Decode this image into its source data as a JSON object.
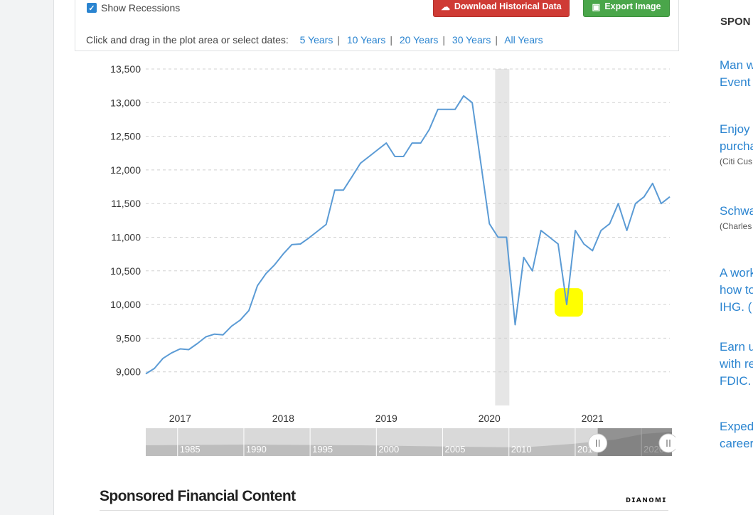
{
  "controls": {
    "show_recessions_label": "Show Recessions",
    "download_label": "Download Historical Data",
    "export_label": "Export Image",
    "hint_text": "Click and drag in the plot area or select dates:",
    "ranges": [
      "5 Years",
      "10 Years",
      "20 Years",
      "30 Years",
      "All Years"
    ]
  },
  "chart_data": {
    "type": "line",
    "x_tick_labels": [
      "2017",
      "2018",
      "2019",
      "2020",
      "2021"
    ],
    "y_tick_labels": [
      "13,500",
      "13,000",
      "12,500",
      "12,000",
      "11,500",
      "11,000",
      "10,500",
      "10,000",
      "9,500",
      "9,000"
    ],
    "ylim": [
      8500,
      13500
    ],
    "grid": "horizontal dashed",
    "series": [
      {
        "color": "#5b9bd5",
        "points": [
          [
            "2016-09",
            8970
          ],
          [
            "2016-10",
            9050
          ],
          [
            "2016-11",
            9200
          ],
          [
            "2016-12",
            9280
          ],
          [
            "2017-01",
            9340
          ],
          [
            "2017-02",
            9330
          ],
          [
            "2017-03",
            9420
          ],
          [
            "2017-04",
            9520
          ],
          [
            "2017-05",
            9560
          ],
          [
            "2017-06",
            9550
          ],
          [
            "2017-07",
            9680
          ],
          [
            "2017-08",
            9770
          ],
          [
            "2017-09",
            9910
          ],
          [
            "2017-10",
            10280
          ],
          [
            "2017-11",
            10460
          ],
          [
            "2017-12",
            10590
          ],
          [
            "2018-01",
            10750
          ],
          [
            "2018-02",
            10890
          ],
          [
            "2018-03",
            10900
          ],
          [
            "2018-04",
            10990
          ],
          [
            "2018-05",
            11090
          ],
          [
            "2018-06",
            11190
          ],
          [
            "2018-07",
            11700
          ],
          [
            "2018-08",
            11700
          ],
          [
            "2018-09",
            11900
          ],
          [
            "2018-10",
            12100
          ],
          [
            "2018-11",
            12200
          ],
          [
            "2018-12",
            12300
          ],
          [
            "2019-01",
            12400
          ],
          [
            "2019-02",
            12200
          ],
          [
            "2019-03",
            12200
          ],
          [
            "2019-04",
            12400
          ],
          [
            "2019-05",
            12400
          ],
          [
            "2019-06",
            12600
          ],
          [
            "2019-07",
            12900
          ],
          [
            "2019-08",
            12900
          ],
          [
            "2019-09",
            12900
          ],
          [
            "2019-10",
            13100
          ],
          [
            "2019-11",
            13000
          ],
          [
            "2019-12",
            12100
          ],
          [
            "2020-01",
            11200
          ],
          [
            "2020-02",
            11000
          ],
          [
            "2020-03",
            11000
          ],
          [
            "2020-04",
            9700
          ],
          [
            "2020-05",
            10700
          ],
          [
            "2020-06",
            10500
          ],
          [
            "2020-07",
            11100
          ],
          [
            "2020-08",
            11000
          ],
          [
            "2020-09",
            10900
          ],
          [
            "2020-10",
            10000
          ],
          [
            "2020-11",
            11100
          ],
          [
            "2020-12",
            10900
          ],
          [
            "2021-01",
            10800
          ],
          [
            "2021-02",
            11100
          ],
          [
            "2021-03",
            11200
          ],
          [
            "2021-04",
            11500
          ],
          [
            "2021-05",
            11100
          ],
          [
            "2021-06",
            11500
          ],
          [
            "2021-07",
            11600
          ],
          [
            "2021-08",
            11800
          ],
          [
            "2021-09",
            11500
          ],
          [
            "2021-10",
            11600
          ]
        ]
      }
    ],
    "recession": {
      "start": "2020-02",
      "end": "2020-04"
    },
    "highlight": {
      "x": "2020-10",
      "y": 10000,
      "color": "#ffff00"
    },
    "navigator": {
      "labels": [
        "1985",
        "1990",
        "1995",
        "2000",
        "2005",
        "2010",
        "2015",
        "2020"
      ],
      "selected_range": [
        "2016-09",
        "2021-10"
      ]
    }
  },
  "sponsored": {
    "heading": "Sponsored Financial Content",
    "brand": "Dianomi"
  },
  "sidebar": {
    "heading": "SPON",
    "ads": [
      {
        "lines": [
          "Man w",
          "Event"
        ],
        "source": ""
      },
      {
        "lines": [
          "Enjoy",
          "purcha"
        ],
        "source": "(Citi Cus"
      },
      {
        "lines": [
          "Schwa"
        ],
        "source": "(Charles"
      },
      {
        "lines": [
          "A work",
          "how to",
          "IHG. ("
        ],
        "source": ""
      },
      {
        "lines": [
          "Earn u",
          "with re",
          "FDIC."
        ],
        "source": ""
      },
      {
        "lines": [
          "Exped",
          "career"
        ],
        "source": ""
      }
    ]
  }
}
